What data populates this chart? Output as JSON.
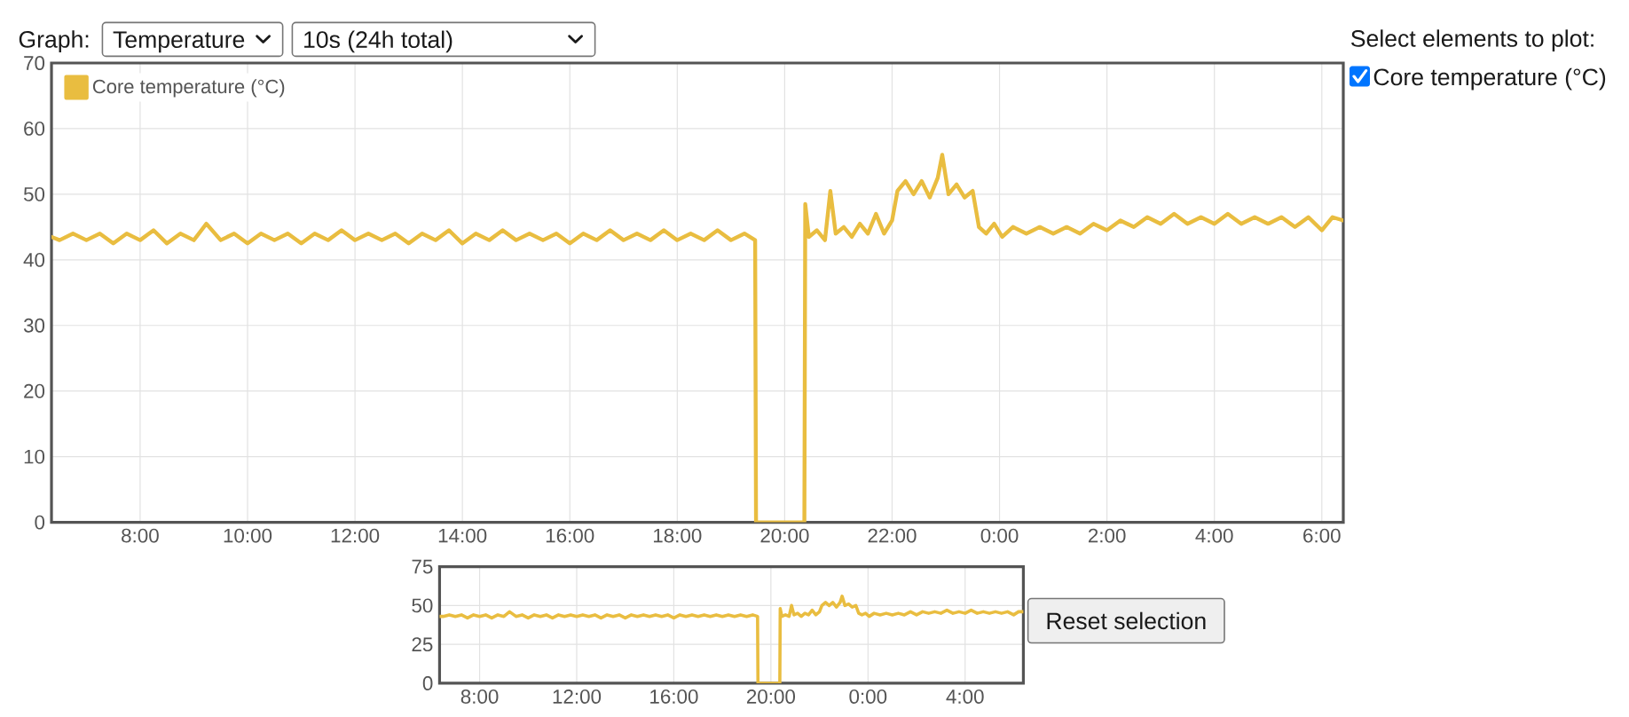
{
  "chart_data": [
    {
      "type": "line",
      "x": [
        "2000-01-01T06:21",
        "2000-01-01T06:30",
        "2000-01-01T06:45",
        "2000-01-01T07:00",
        "2000-01-01T07:15",
        "2000-01-01T07:30",
        "2000-01-01T07:45",
        "2000-01-01T08:00",
        "2000-01-01T08:15",
        "2000-01-01T08:30",
        "2000-01-01T08:45",
        "2000-01-01T09:00",
        "2000-01-01T09:14",
        "2000-01-01T09:30",
        "2000-01-01T09:45",
        "2000-01-01T10:00",
        "2000-01-01T10:15",
        "2000-01-01T10:30",
        "2000-01-01T10:45",
        "2000-01-01T11:00",
        "2000-01-01T11:15",
        "2000-01-01T11:30",
        "2000-01-01T11:45",
        "2000-01-01T12:00",
        "2000-01-01T12:15",
        "2000-01-01T12:30",
        "2000-01-01T12:45",
        "2000-01-01T13:00",
        "2000-01-01T13:15",
        "2000-01-01T13:30",
        "2000-01-01T13:45",
        "2000-01-01T14:00",
        "2000-01-01T14:15",
        "2000-01-01T14:30",
        "2000-01-01T14:45",
        "2000-01-01T15:00",
        "2000-01-01T15:15",
        "2000-01-01T15:30",
        "2000-01-01T15:45",
        "2000-01-01T16:00",
        "2000-01-01T16:15",
        "2000-01-01T16:30",
        "2000-01-01T16:45",
        "2000-01-01T17:00",
        "2000-01-01T17:15",
        "2000-01-01T17:30",
        "2000-01-01T17:45",
        "2000-01-01T18:00",
        "2000-01-01T18:15",
        "2000-01-01T18:30",
        "2000-01-01T18:45",
        "2000-01-01T19:00",
        "2000-01-01T19:15",
        "2000-01-01T19:27",
        "2000-01-01T19:28",
        "2000-01-01T20:22",
        "2000-01-01T20:23",
        "2000-01-01T20:27",
        "2000-01-01T20:36",
        "2000-01-01T20:45",
        "2000-01-01T20:51",
        "2000-01-01T20:57",
        "2000-01-01T21:06",
        "2000-01-01T21:15",
        "2000-01-01T21:24",
        "2000-01-01T21:33",
        "2000-01-01T21:42",
        "2000-01-01T21:51",
        "2000-01-01T22:00",
        "2000-01-01T22:06",
        "2000-01-01T22:15",
        "2000-01-01T22:24",
        "2000-01-01T22:33",
        "2000-01-01T22:42",
        "2000-01-01T22:51",
        "2000-01-01T22:56",
        "2000-01-01T23:03",
        "2000-01-01T23:12",
        "2000-01-01T23:21",
        "2000-01-01T23:30",
        "2000-01-01T23:37",
        "2000-01-01T23:45",
        "2000-01-01T23:54",
        "2000-01-02T00:03",
        "2000-01-02T00:15",
        "2000-01-02T00:30",
        "2000-01-02T00:45",
        "2000-01-02T01:00",
        "2000-01-02T01:15",
        "2000-01-02T01:30",
        "2000-01-02T01:45",
        "2000-01-02T02:00",
        "2000-01-02T02:15",
        "2000-01-02T02:30",
        "2000-01-02T02:45",
        "2000-01-02T03:00",
        "2000-01-02T03:15",
        "2000-01-02T03:30",
        "2000-01-02T03:45",
        "2000-01-02T04:00",
        "2000-01-02T04:15",
        "2000-01-02T04:30",
        "2000-01-02T04:45",
        "2000-01-02T05:00",
        "2000-01-02T05:15",
        "2000-01-02T05:30",
        "2000-01-02T05:45",
        "2000-01-02T06:00",
        "2000-01-02T06:12",
        "2000-01-02T06:24"
      ],
      "series": [
        {
          "name": "Core temperature (°C)",
          "color": "#e9bd40",
          "values": [
            43.5,
            43,
            44,
            43,
            44,
            42.5,
            44,
            43,
            44.5,
            42.5,
            44,
            43,
            45.5,
            43,
            44,
            42.5,
            44,
            43,
            44,
            42.5,
            44,
            43,
            44.5,
            43,
            44,
            43,
            44,
            42.5,
            44,
            43,
            44.5,
            42.5,
            44,
            43,
            44.5,
            43,
            44,
            43,
            44,
            42.5,
            44,
            43,
            44.5,
            43,
            44,
            43,
            44.5,
            43,
            44,
            43,
            44.5,
            43,
            44,
            43,
            0,
            0,
            48.5,
            43.5,
            44.5,
            43,
            50.5,
            44,
            45,
            43.5,
            45.5,
            44,
            47,
            44,
            46,
            50.5,
            52,
            50,
            52,
            49.5,
            52.5,
            56,
            50,
            51.5,
            49.5,
            50.5,
            45,
            44,
            45.5,
            43.5,
            45,
            44,
            45,
            44,
            45,
            44,
            45.5,
            44.5,
            46,
            45,
            46.5,
            45.5,
            47,
            45.5,
            46.5,
            45.5,
            47,
            45.5,
            46.5,
            45.5,
            46.5,
            45,
            46.5,
            44.5,
            46.5,
            46
          ]
        }
      ],
      "xlim": [
        "2000-01-01T06:21",
        "2000-01-02T06:24"
      ],
      "xticks": [
        {
          "value": "2000-01-01T08:00",
          "label": "8:00"
        },
        {
          "value": "2000-01-01T10:00",
          "label": "10:00"
        },
        {
          "value": "2000-01-01T12:00",
          "label": "12:00"
        },
        {
          "value": "2000-01-01T14:00",
          "label": "14:00"
        },
        {
          "value": "2000-01-01T16:00",
          "label": "16:00"
        },
        {
          "value": "2000-01-01T18:00",
          "label": "18:00"
        },
        {
          "value": "2000-01-01T20:00",
          "label": "20:00"
        },
        {
          "value": "2000-01-01T22:00",
          "label": "22:00"
        },
        {
          "value": "2000-01-02T00:00",
          "label": "0:00"
        },
        {
          "value": "2000-01-02T02:00",
          "label": "2:00"
        },
        {
          "value": "2000-01-02T04:00",
          "label": "4:00"
        },
        {
          "value": "2000-01-02T06:00",
          "label": "6:00"
        }
      ],
      "ylim": [
        0,
        70
      ],
      "yticks": [
        0,
        10,
        20,
        30,
        40,
        50,
        60,
        70
      ],
      "grid": true,
      "legend": "top left",
      "line_style": "solid",
      "annotations": [
        "Graph:",
        "Temperature",
        "10s (24h total)",
        "Select elements to plot:",
        "Core temperature (°C)"
      ]
    },
    {
      "type": "line",
      "x": [
        "2000-01-01T06:21",
        "2000-01-01T06:30",
        "2000-01-01T06:45",
        "2000-01-01T07:00",
        "2000-01-01T07:15",
        "2000-01-01T07:30",
        "2000-01-01T07:45",
        "2000-01-01T08:00",
        "2000-01-01T08:15",
        "2000-01-01T08:30",
        "2000-01-01T08:45",
        "2000-01-01T09:00",
        "2000-01-01T09:14",
        "2000-01-01T09:30",
        "2000-01-01T09:45",
        "2000-01-01T10:00",
        "2000-01-01T10:15",
        "2000-01-01T10:30",
        "2000-01-01T10:45",
        "2000-01-01T11:00",
        "2000-01-01T11:15",
        "2000-01-01T11:30",
        "2000-01-01T11:45",
        "2000-01-01T12:00",
        "2000-01-01T12:15",
        "2000-01-01T12:30",
        "2000-01-01T12:45",
        "2000-01-01T13:00",
        "2000-01-01T13:15",
        "2000-01-01T13:30",
        "2000-01-01T13:45",
        "2000-01-01T14:00",
        "2000-01-01T14:15",
        "2000-01-01T14:30",
        "2000-01-01T14:45",
        "2000-01-01T15:00",
        "2000-01-01T15:15",
        "2000-01-01T15:30",
        "2000-01-01T15:45",
        "2000-01-01T16:00",
        "2000-01-01T16:15",
        "2000-01-01T16:30",
        "2000-01-01T16:45",
        "2000-01-01T17:00",
        "2000-01-01T17:15",
        "2000-01-01T17:30",
        "2000-01-01T17:45",
        "2000-01-01T18:00",
        "2000-01-01T18:15",
        "2000-01-01T18:30",
        "2000-01-01T18:45",
        "2000-01-01T19:00",
        "2000-01-01T19:15",
        "2000-01-01T19:27",
        "2000-01-01T19:28",
        "2000-01-01T20:22",
        "2000-01-01T20:23",
        "2000-01-01T20:27",
        "2000-01-01T20:36",
        "2000-01-01T20:45",
        "2000-01-01T20:51",
        "2000-01-01T20:57",
        "2000-01-01T21:06",
        "2000-01-01T21:15",
        "2000-01-01T21:24",
        "2000-01-01T21:33",
        "2000-01-01T21:42",
        "2000-01-01T21:51",
        "2000-01-01T22:00",
        "2000-01-01T22:06",
        "2000-01-01T22:15",
        "2000-01-01T22:24",
        "2000-01-01T22:33",
        "2000-01-01T22:42",
        "2000-01-01T22:51",
        "2000-01-01T22:56",
        "2000-01-01T23:03",
        "2000-01-01T23:12",
        "2000-01-01T23:21",
        "2000-01-01T23:30",
        "2000-01-01T23:37",
        "2000-01-01T23:45",
        "2000-01-01T23:54",
        "2000-01-02T00:03",
        "2000-01-02T00:15",
        "2000-01-02T00:30",
        "2000-01-02T00:45",
        "2000-01-02T01:00",
        "2000-01-02T01:15",
        "2000-01-02T01:30",
        "2000-01-02T01:45",
        "2000-01-02T02:00",
        "2000-01-02T02:15",
        "2000-01-02T02:30",
        "2000-01-02T02:45",
        "2000-01-02T03:00",
        "2000-01-02T03:15",
        "2000-01-02T03:30",
        "2000-01-02T03:45",
        "2000-01-02T04:00",
        "2000-01-02T04:15",
        "2000-01-02T04:30",
        "2000-01-02T04:45",
        "2000-01-02T05:00",
        "2000-01-02T05:15",
        "2000-01-02T05:30",
        "2000-01-02T05:45",
        "2000-01-02T06:00",
        "2000-01-02T06:12",
        "2000-01-02T06:24"
      ],
      "series": [
        {
          "color": "#e9bd40",
          "values": [
            43,
            43,
            44,
            43,
            44,
            42,
            44,
            43,
            44,
            42,
            44,
            43,
            46,
            43,
            44,
            42,
            44,
            43,
            44,
            42,
            44,
            43,
            44,
            43,
            44,
            43,
            44,
            42,
            44,
            43,
            44,
            42,
            44,
            43,
            44,
            43,
            44,
            43,
            44,
            42,
            44,
            43,
            44,
            43,
            44,
            43,
            44,
            43,
            44,
            43,
            44,
            43,
            44,
            43,
            0,
            0,
            48,
            43,
            44,
            43,
            50,
            44,
            45,
            43,
            45,
            44,
            47,
            44,
            46,
            50,
            52,
            50,
            52,
            49,
            52,
            56,
            50,
            51,
            49,
            50,
            45,
            44,
            45,
            43,
            45,
            44,
            45,
            44,
            45,
            44,
            46,
            44,
            46,
            45,
            46,
            45,
            47,
            45,
            46,
            45,
            47,
            45,
            46,
            45,
            46,
            45,
            46,
            44,
            46,
            46
          ]
        }
      ],
      "xlim": [
        "2000-01-01T06:21",
        "2000-01-02T06:24"
      ],
      "xticks": [
        {
          "value": "2000-01-01T08:00",
          "label": "8:00"
        },
        {
          "value": "2000-01-01T12:00",
          "label": "12:00"
        },
        {
          "value": "2000-01-01T16:00",
          "label": "16:00"
        },
        {
          "value": "2000-01-01T20:00",
          "label": "20:00"
        },
        {
          "value": "2000-01-02T00:00",
          "label": "0:00"
        },
        {
          "value": "2000-01-02T04:00",
          "label": "4:00"
        }
      ],
      "ylim": [
        0,
        75
      ],
      "yticks": [
        0,
        25,
        50,
        75
      ],
      "grid": true,
      "line_style": "solid",
      "annotations": [
        "Reset selection"
      ]
    }
  ]
}
